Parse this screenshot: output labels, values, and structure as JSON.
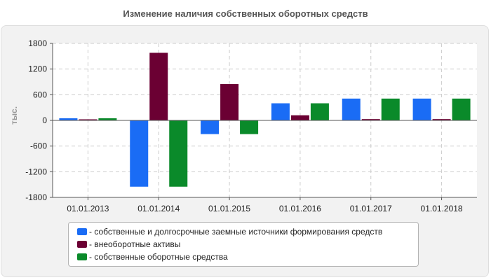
{
  "chart_data": {
    "type": "bar",
    "title": "Изменение наличия собственных оборотных средств",
    "ylabel": "тыс.",
    "xlabel": "",
    "categories": [
      "01.01.2013",
      "01.01.2014",
      "01.01.2015",
      "01.01.2016",
      "01.01.2017",
      "01.01.2018"
    ],
    "ylim": [
      -1800,
      1800
    ],
    "yticks": [
      1800,
      1200,
      600,
      0,
      -600,
      -1200,
      -1800
    ],
    "grid": true,
    "legend_position": "bottom",
    "series": [
      {
        "name": "- собственные и долгосрочные заемные источники формирования средств",
        "color": "#1a6cf5",
        "values": [
          50,
          -1550,
          -320,
          400,
          510,
          510
        ]
      },
      {
        "name": "- внеоборотные активы",
        "color": "#6b0033",
        "values": [
          25,
          1580,
          850,
          120,
          30,
          30
        ]
      },
      {
        "name": "- собственные оборотные средства",
        "color": "#0a8a2a",
        "values": [
          50,
          -1550,
          -320,
          400,
          510,
          510
        ]
      }
    ]
  }
}
